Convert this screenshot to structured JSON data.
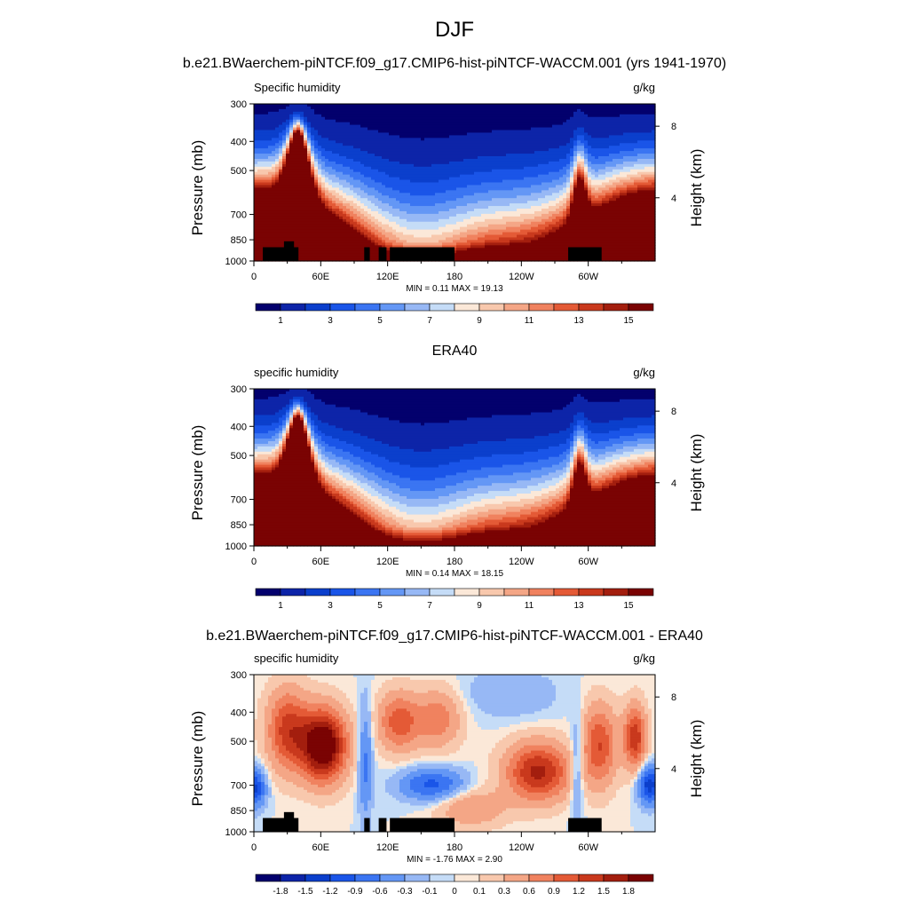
{
  "chart_data": {
    "title": "DJF",
    "colors": {
      "full_field": [
        "#03006d",
        "#0d24a8",
        "#0b3fcc",
        "#1a55e8",
        "#3b75f2",
        "#6497f5",
        "#97b8f5",
        "#c5dcf7",
        "#fbe8d8",
        "#f8c8ad",
        "#f4a686",
        "#f0825f",
        "#e45a36",
        "#c9391d",
        "#a31e0e",
        "#7a0303"
      ],
      "difference": [
        "#03006d",
        "#0d24a8",
        "#0b3fcc",
        "#1a55e8",
        "#3b75f2",
        "#6497f5",
        "#97b8f5",
        "#c5dcf7",
        "#fbe8d8",
        "#f8c8ad",
        "#f4a686",
        "#f0825f",
        "#e45a36",
        "#c9391d",
        "#a31e0e",
        "#7a0303"
      ]
    },
    "panels": [
      {
        "type": "heatmap",
        "run_title": "b.e21.BWaerchem-piNTCF.f09_g17.CMIP6-hist-piNTCF-WACCM.001 (yrs 1941-1970)",
        "left_label": "Specific humidity",
        "right_label": "g/kg",
        "ylabel": "Pressure (mb)",
        "ylabel_right": "Height (km)",
        "yticks": [
          "300",
          "400",
          "500",
          "700",
          "850",
          "1000"
        ],
        "yticks_right": [
          "8",
          "4"
        ],
        "xticks": [
          "0",
          "60E",
          "120E",
          "180",
          "120W",
          "60W"
        ],
        "min_max": "MIN =   0.11  MAX =  19.13",
        "colorbar_labels": [
          "1",
          "3",
          "5",
          "7",
          "9",
          "11",
          "13",
          "15"
        ],
        "topography": true,
        "min": 0.11,
        "max": 19.13
      },
      {
        "type": "heatmap",
        "panel_title": "ERA40",
        "left_label": "specific humidity",
        "right_label": "g/kg",
        "ylabel": "Pressure (mb)",
        "ylabel_right": "Height (km)",
        "yticks": [
          "300",
          "400",
          "500",
          "700",
          "850",
          "1000"
        ],
        "yticks_right": [
          "8",
          "4"
        ],
        "xticks": [
          "0",
          "60E",
          "120E",
          "180",
          "120W",
          "60W"
        ],
        "min_max": "MIN =   0.14  MAX =  18.15",
        "colorbar_labels": [
          "1",
          "3",
          "5",
          "7",
          "9",
          "11",
          "13",
          "15"
        ],
        "topography": false,
        "min": 0.14,
        "max": 18.15
      },
      {
        "type": "heatmap",
        "panel_title": "b.e21.BWaerchem-piNTCF.f09_g17.CMIP6-hist-piNTCF-WACCM.001 - ERA40",
        "left_label": "specific humidity",
        "right_label": "g/kg",
        "ylabel": "Pressure (mb)",
        "ylabel_right": "Height (km)",
        "yticks": [
          "300",
          "400",
          "500",
          "700",
          "850",
          "1000"
        ],
        "yticks_right": [
          "8",
          "4"
        ],
        "xticks": [
          "0",
          "60E",
          "120E",
          "180",
          "120W",
          "60W"
        ],
        "min_max": "MIN =  -1.76  MAX =   2.90",
        "colorbar_labels": [
          "-1.8",
          "-1.5",
          "-1.2",
          "-0.9",
          "-0.6",
          "-0.3",
          "-0.1",
          "0",
          "0.1",
          "0.3",
          "0.6",
          "0.9",
          "1.2",
          "1.5",
          "1.8"
        ],
        "topography": true,
        "min": -1.76,
        "max": 2.9
      }
    ]
  }
}
